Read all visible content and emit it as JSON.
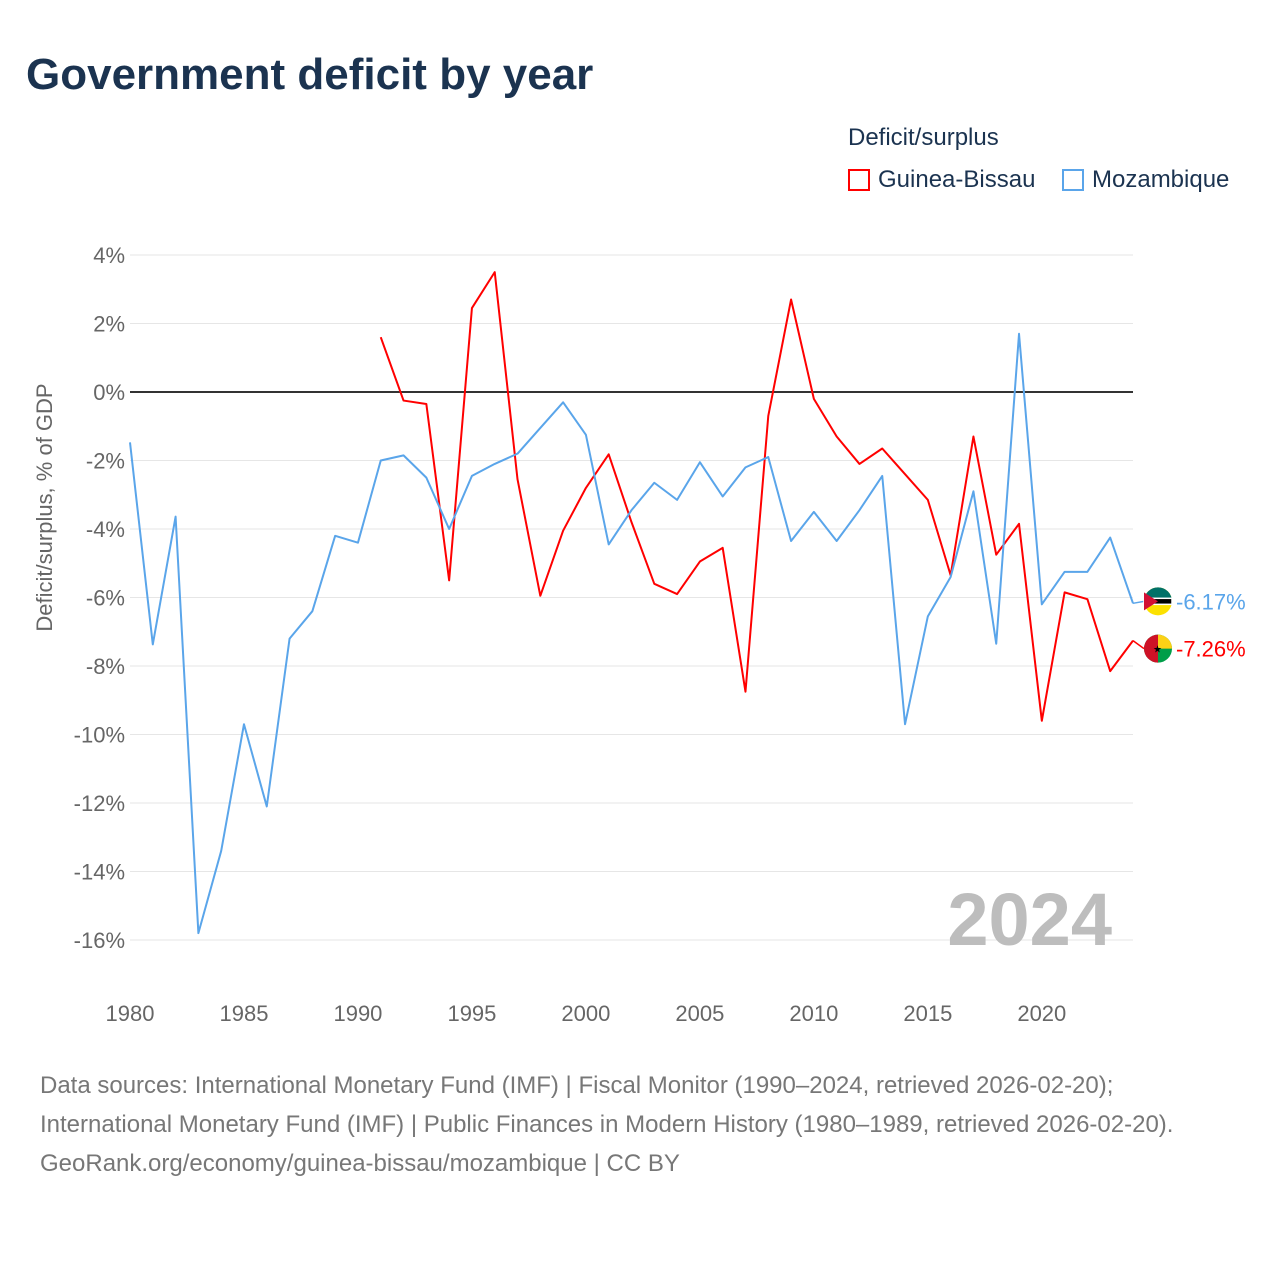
{
  "title": "Government deficit by year",
  "legend": {
    "title": "Deficit/surplus",
    "items": [
      {
        "label": "Guinea-Bissau",
        "color": "#ff0000"
      },
      {
        "label": "Mozambique",
        "color": "#5aa5ea"
      }
    ]
  },
  "chart_data": {
    "type": "line",
    "title": "Government deficit by year",
    "ylabel": "Deficit/surplus, % of GDP",
    "xlabel": "",
    "xlim": [
      1980,
      2024
    ],
    "ylim": [
      -16,
      4
    ],
    "x_ticks": [
      1980,
      1985,
      1990,
      1995,
      2000,
      2005,
      2010,
      2015,
      2020
    ],
    "y_ticks": [
      4,
      2,
      0,
      -2,
      -4,
      -6,
      -8,
      -10,
      -12,
      -14,
      -16
    ],
    "y_tick_labels": [
      "4%",
      "2%",
      "0%",
      "-2%",
      "-4%",
      "-6%",
      "-8%",
      "-10%",
      "-12%",
      "-14%",
      "-16%"
    ],
    "year_watermark": "2024",
    "grid": true,
    "legend_position": "top-right",
    "series": [
      {
        "name": "Guinea-Bissau",
        "color": "#ff0000",
        "end_label": "-7.26%",
        "x": [
          1991,
          1992,
          1993,
          1994,
          1995,
          1996,
          1997,
          1998,
          1999,
          2000,
          2001,
          2002,
          2003,
          2004,
          2005,
          2006,
          2007,
          2008,
          2009,
          2010,
          2011,
          2012,
          2013,
          2014,
          2015,
          2016,
          2017,
          2018,
          2019,
          2020,
          2021,
          2022,
          2023,
          2024
        ],
        "values": [
          1.6,
          -0.25,
          -0.35,
          -5.5,
          2.45,
          3.5,
          -2.55,
          -5.95,
          -4.05,
          -2.8,
          -1.82,
          -3.8,
          -5.6,
          -5.9,
          -4.95,
          -4.55,
          -8.75,
          -0.7,
          2.7,
          -0.2,
          -1.3,
          -2.1,
          -1.65,
          -2.4,
          -3.15,
          -5.35,
          -1.3,
          -4.75,
          -3.85,
          -9.6,
          -5.85,
          -6.05,
          -8.15,
          -7.26
        ]
      },
      {
        "name": "Mozambique",
        "color": "#5aa5ea",
        "end_label": "-6.17%",
        "x": [
          1980,
          1981,
          1982,
          1983,
          1984,
          1985,
          1986,
          1987,
          1988,
          1989,
          1990,
          1991,
          1992,
          1993,
          1994,
          1995,
          1996,
          1997,
          1998,
          1999,
          2000,
          2001,
          2002,
          2003,
          2004,
          2005,
          2006,
          2007,
          2008,
          2009,
          2010,
          2011,
          2012,
          2013,
          2014,
          2015,
          2016,
          2017,
          2018,
          2019,
          2020,
          2021,
          2022,
          2023,
          2024
        ],
        "values": [
          -1.47,
          -7.37,
          -3.64,
          -15.8,
          -13.4,
          -9.7,
          -12.1,
          -7.2,
          -6.4,
          -4.2,
          -4.4,
          -2.0,
          -1.85,
          -2.5,
          -4.0,
          -2.45,
          -2.1,
          -1.8,
          -1.05,
          -0.3,
          -1.25,
          -4.45,
          -3.45,
          -2.65,
          -3.15,
          -2.05,
          -3.05,
          -2.2,
          -1.9,
          -4.35,
          -3.5,
          -4.35,
          -3.45,
          -2.45,
          -9.7,
          -6.55,
          -5.4,
          -2.9,
          -7.35,
          1.7,
          -6.2,
          -5.25,
          -5.25,
          -4.25,
          -6.17
        ]
      }
    ]
  },
  "sources": {
    "line1": "Data sources: International Monetary Fund (IMF) | Fiscal Monitor (1990–2024, retrieved 2026-02-20); International Monetary Fund (IMF) | Public Finances in Modern History (1980–1989, retrieved 2026-02-20).",
    "line2": "GeoRank.org/economy/guinea-bissau/mozambique | CC BY"
  }
}
